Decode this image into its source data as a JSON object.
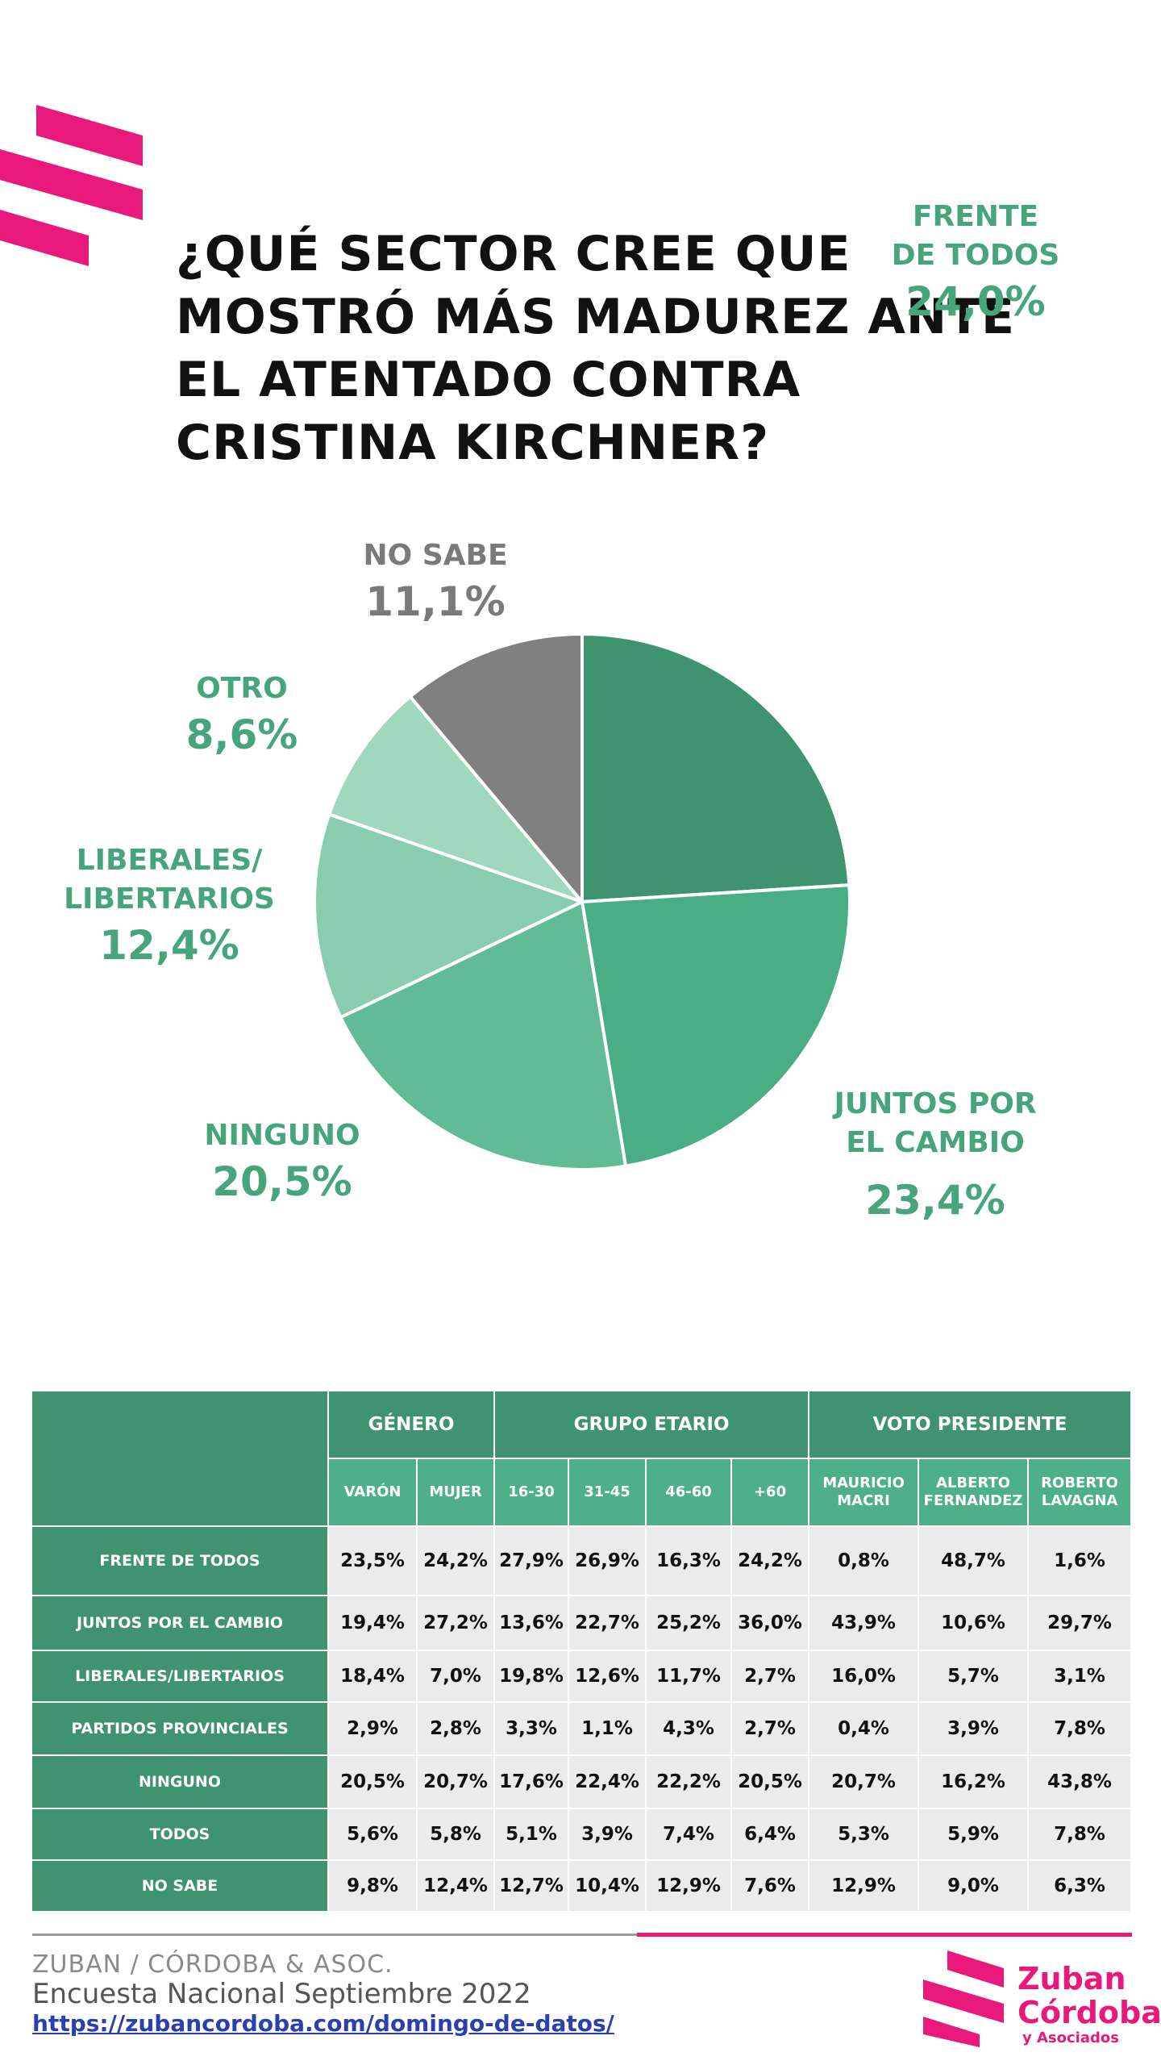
{
  "title_lines": [
    "¿QUÉ SECTOR CREE QUE",
    "MOSTRÓ MÁS MADUREZ ANTE",
    "EL ATENTADO CONTRA",
    "CRISTINA KIRCHNER?"
  ],
  "chart_data": {
    "type": "pie",
    "slices": [
      {
        "name_lines": [
          "FRENTE",
          "DE TODOS"
        ],
        "value": 24.0,
        "value_label": "24,0%",
        "color": "#3f946f",
        "label_color": "#47a57c"
      },
      {
        "name_lines": [
          "JUNTOS POR",
          "EL CAMBIO"
        ],
        "value": 23.4,
        "value_label": "23,4%",
        "color": "#4aae85",
        "label_color": "#47a57c"
      },
      {
        "name_lines": [
          "NINGUNO"
        ],
        "value": 20.5,
        "value_label": "20,5%",
        "color": "#61bc96",
        "label_color": "#47a57c"
      },
      {
        "name_lines": [
          "LIBERALES/",
          "LIBERTARIOS"
        ],
        "value": 12.4,
        "value_label": "12,4%",
        "color": "#88cdae",
        "label_color": "#47a57c"
      },
      {
        "name_lines": [
          "OTRO"
        ],
        "value": 8.6,
        "value_label": "8,6%",
        "color": "#9fd8bd",
        "label_color": "#47a57c"
      },
      {
        "name_lines": [
          "NO SABE"
        ],
        "value": 11.1,
        "value_label": "11,1%",
        "color": "#808080",
        "label_color": "#7a7a7a"
      }
    ]
  },
  "table": {
    "groups": [
      "GÉNERO",
      "GRUPO ETARIO",
      "VOTO PRESIDENTE"
    ],
    "columns": [
      [
        "VARÓN"
      ],
      [
        "MUJER"
      ],
      [
        "16-30"
      ],
      [
        "31-45"
      ],
      [
        "46-60"
      ],
      [
        "+60"
      ],
      [
        "MAURICIO",
        "MACRI"
      ],
      [
        "ALBERTO",
        "FERNANDEZ"
      ],
      [
        "ROBERTO",
        "LAVAGNA"
      ]
    ],
    "rows": [
      {
        "label": "FRENTE DE TODOS",
        "values": [
          "23,5%",
          "24,2%",
          "27,9%",
          "26,9%",
          "16,3%",
          "24,2%",
          "0,8%",
          "48,7%",
          "1,6%"
        ]
      },
      {
        "label": "JUNTOS POR EL CAMBIO",
        "values": [
          "19,4%",
          "27,2%",
          "13,6%",
          "22,7%",
          "25,2%",
          "36,0%",
          "43,9%",
          "10,6%",
          "29,7%"
        ]
      },
      {
        "label": "LIBERALES/LIBERTARIOS",
        "values": [
          "18,4%",
          "7,0%",
          "19,8%",
          "12,6%",
          "11,7%",
          "2,7%",
          "16,0%",
          "5,7%",
          "3,1%"
        ]
      },
      {
        "label": "PARTIDOS PROVINCIALES",
        "values": [
          "2,9%",
          "2,8%",
          "3,3%",
          "1,1%",
          "4,3%",
          "2,7%",
          "0,4%",
          "3,9%",
          "7,8%"
        ]
      },
      {
        "label": "NINGUNO",
        "values": [
          "20,5%",
          "20,7%",
          "17,6%",
          "22,4%",
          "22,2%",
          "20,5%",
          "20,7%",
          "16,2%",
          "43,8%"
        ]
      },
      {
        "label": "TODOS",
        "values": [
          "5,6%",
          "5,8%",
          "5,1%",
          "3,9%",
          "7,4%",
          "6,4%",
          "5,3%",
          "5,9%",
          "7,8%"
        ]
      },
      {
        "label": "NO SABE",
        "values": [
          "9,8%",
          "12,4%",
          "12,7%",
          "10,4%",
          "12,9%",
          "7,6%",
          "12,9%",
          "9,0%",
          "6,3%"
        ]
      }
    ]
  },
  "footer": {
    "brand": "ZUBAN / CÓRDOBA & ASOC.",
    "survey": "Encuesta Nacional Septiembre 2022",
    "url": "https://zubancordoba.com/domingo-de-datos/"
  },
  "logo": {
    "line1": "Zuban",
    "line2": "Córdoba",
    "line3": "y Asociados",
    "color": "#e8197a"
  },
  "accent_color": "#e8197a"
}
